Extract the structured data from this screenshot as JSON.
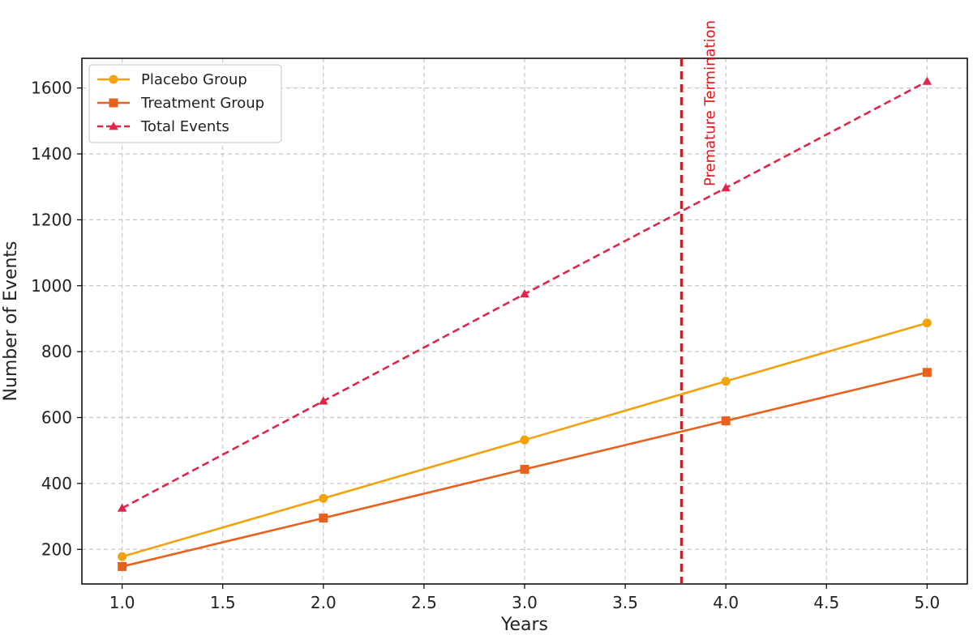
{
  "chart_data": {
    "type": "line",
    "x": [
      1.0,
      2.0,
      3.0,
      4.0,
      5.0
    ],
    "series": [
      {
        "name": "Placebo Group",
        "values": [
          178,
          355,
          532,
          710,
          887
        ],
        "color": "#f0a30a",
        "marker": "circle",
        "dash": "solid"
      },
      {
        "name": "Treatment Group",
        "values": [
          148,
          295,
          443,
          590,
          737
        ],
        "color": "#e8611c",
        "marker": "square",
        "dash": "solid"
      },
      {
        "name": "Total Events",
        "values": [
          325,
          650,
          975,
          1297,
          1620
        ],
        "color": "#e0254a",
        "marker": "triangle",
        "dash": "dashed"
      }
    ],
    "xlabel": "Years",
    "ylabel": "Number of Events",
    "xlim": [
      0.8,
      5.2
    ],
    "ylim": [
      95,
      1690
    ],
    "xticks": [
      "1.0",
      "1.5",
      "2.0",
      "2.5",
      "3.0",
      "3.5",
      "4.0",
      "4.5",
      "5.0"
    ],
    "xtick_values": [
      1.0,
      1.5,
      2.0,
      2.5,
      3.0,
      3.5,
      4.0,
      4.5,
      5.0
    ],
    "yticks": [
      "200",
      "400",
      "600",
      "800",
      "1000",
      "1200",
      "1400",
      "1600"
    ],
    "ytick_values": [
      200,
      400,
      600,
      800,
      1000,
      1200,
      1400,
      1600
    ],
    "grid": true,
    "legend_position": "top-left",
    "annotation": {
      "text": "Premature Termination",
      "x": 3.78,
      "color": "#e8141b"
    }
  }
}
